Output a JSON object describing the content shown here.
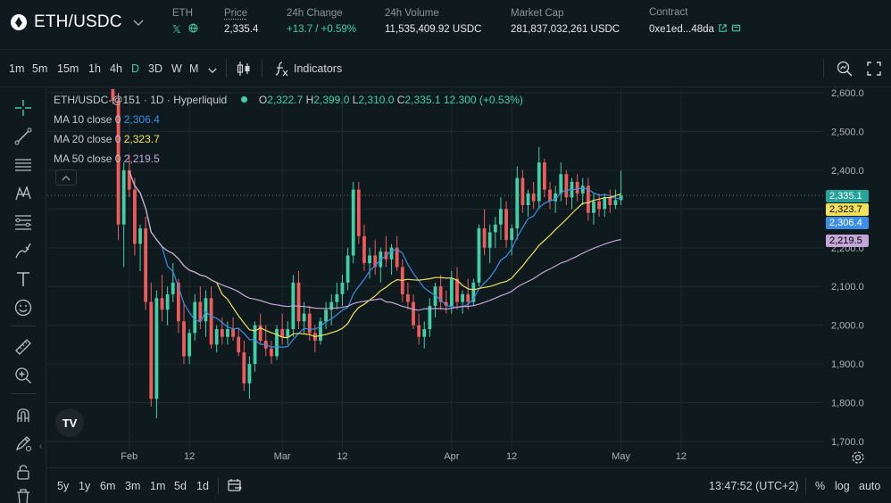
{
  "header": {
    "pair": "ETH/USDC",
    "icons": {
      "coin": "eth-coin-icon",
      "dropdown": "chevron-down-icon",
      "x": "x-social-icon",
      "web": "globe-icon",
      "external": "external-link-icon",
      "copy": "copy-icon"
    },
    "stats": [
      {
        "key": "eth",
        "label": "ETH"
      },
      {
        "key": "price",
        "label": "Price",
        "value": "2,335.4"
      },
      {
        "key": "change",
        "label": "24h Change",
        "value": "+13.7 / +0.59%"
      },
      {
        "key": "volume",
        "label": "24h Volume",
        "value": "11,535,409.92 USDC"
      },
      {
        "key": "mcap",
        "label": "Market Cap",
        "value": "281,837,032,261 USDC"
      },
      {
        "key": "contract",
        "label": "Contract",
        "value": "0xe1ed...48da"
      }
    ],
    "colors": {
      "up": "#3fd0a8",
      "down": "#ef5b5b"
    }
  },
  "toolbar": {
    "timeframes": [
      "1m",
      "5m",
      "15m",
      "1h",
      "4h",
      "D",
      "3D",
      "W",
      "M"
    ],
    "active_timeframe": "D",
    "more_icon": "chevron-down-icon",
    "candle_icon": "candlestick-icon",
    "indicators_icon": "function-icon",
    "indicators_label": "Indicators",
    "right_icons": [
      "search-chart-icon",
      "fullscreen-icon"
    ]
  },
  "drawing_tools": [
    "crosshair-icon",
    "trendline-icon",
    "horizontal-lines-icon",
    "pattern-icon",
    "fib-icon",
    "brush-icon",
    "text-icon",
    "emoji-icon",
    "ruler-icon",
    "zoom-in-icon",
    "magnet-icon",
    "lock-draw-icon",
    "lock-icon",
    "trash-icon"
  ],
  "legend": {
    "symbol_line": "ETH/USDC-@151 · 1D · Hyperliquid",
    "open_label": "O",
    "open": "2,322.7",
    "high_label": "H",
    "high": "2,399.0",
    "low_label": "L",
    "low": "2,310.0",
    "close_label": "C",
    "close": "2,335.1",
    "change": "12.300 (+0.53%)",
    "mas": [
      {
        "label": "MA 10 close 0",
        "value": "2,306.4",
        "color": "#3a8ee6"
      },
      {
        "label": "MA 20 close 0",
        "value": "2,323.7",
        "color": "#f2e05a"
      },
      {
        "label": "MA 50 close 0",
        "value": "2,219.5",
        "color": "#c3a6d8"
      }
    ]
  },
  "price_badges": [
    {
      "value": "2,335.1",
      "bg": "#26a69a",
      "fg": "#ffffff"
    },
    {
      "value": "2,323.7",
      "bg": "#f2e05a",
      "fg": "#000000"
    },
    {
      "value": "2,306.4",
      "bg": "#3a8ee6",
      "fg": "#ffffff"
    },
    {
      "value": "2,219.5",
      "bg": "#c3a6d8",
      "fg": "#000000"
    }
  ],
  "tv_logo": "TV",
  "collapse_icon": "chevron-up-icon",
  "bottom": {
    "ranges": [
      "5y",
      "1y",
      "6m",
      "3m",
      "1m",
      "5d",
      "1d"
    ],
    "goto_icon": "calendar-goto-icon",
    "time": "13:47:52 (UTC+2)",
    "percent": "%",
    "log": "log",
    "auto": "auto",
    "settings_icon": "gear-icon"
  },
  "chart_data": {
    "type": "candlestick",
    "y_ticks": [
      "2,600.0",
      "2,500.0",
      "2,400.0",
      "2,300.0",
      "2,200.0",
      "2,100.0",
      "2,000.0",
      "1,900.0",
      "1,800.0",
      "1,700.0"
    ],
    "ylim": [
      1700,
      2600
    ],
    "x_ticks": [
      "Feb",
      "12",
      "Mar",
      "12",
      "Apr",
      "12",
      "May",
      "12"
    ],
    "x_tick_days": [
      3,
      14,
      31,
      42,
      62,
      73,
      93,
      104
    ],
    "x_range_days": [
      -12,
      130
    ],
    "last_price": 2335.1,
    "candles": [
      [
        0,
        2650,
        2700,
        2570,
        2580
      ],
      [
        1,
        2580,
        2600,
        2220,
        2260
      ],
      [
        2,
        2260,
        2420,
        2150,
        2400
      ],
      [
        3,
        2400,
        2440,
        2330,
        2350
      ],
      [
        4,
        2350,
        2380,
        2180,
        2210
      ],
      [
        5,
        2210,
        2260,
        2140,
        2250
      ],
      [
        6,
        2250,
        2280,
        2040,
        2060
      ],
      [
        7,
        2060,
        2110,
        1790,
        1810
      ],
      [
        8,
        1810,
        2090,
        1760,
        2070
      ],
      [
        9,
        2070,
        2130,
        2010,
        2040
      ],
      [
        10,
        2040,
        2100,
        2000,
        2080
      ],
      [
        11,
        2080,
        2160,
        2060,
        2110
      ],
      [
        12,
        2110,
        2120,
        1980,
        2010
      ],
      [
        13,
        2010,
        2060,
        1900,
        1920
      ],
      [
        14,
        1920,
        1990,
        1900,
        1980
      ],
      [
        15,
        1980,
        2080,
        1960,
        2060
      ],
      [
        16,
        2060,
        2100,
        1990,
        2010
      ],
      [
        17,
        2010,
        2090,
        1970,
        2070
      ],
      [
        18,
        2070,
        2100,
        1940,
        1950
      ],
      [
        19,
        1950,
        2000,
        1930,
        1990
      ],
      [
        20,
        1990,
        2020,
        1950,
        1970
      ],
      [
        21,
        1970,
        2010,
        1950,
        1990
      ],
      [
        22,
        1990,
        2020,
        1960,
        1970
      ],
      [
        23,
        1970,
        1990,
        1920,
        1930
      ],
      [
        24,
        1930,
        1960,
        1830,
        1850
      ],
      [
        25,
        1850,
        1920,
        1810,
        1900
      ],
      [
        26,
        1900,
        2010,
        1880,
        2000
      ],
      [
        27,
        2000,
        2030,
        1950,
        1960
      ],
      [
        28,
        1960,
        2000,
        1920,
        1940
      ],
      [
        29,
        1940,
        1960,
        1900,
        1920
      ],
      [
        30,
        1920,
        2000,
        1910,
        1990
      ],
      [
        31,
        1990,
        2030,
        1950,
        1970
      ],
      [
        32,
        1970,
        2010,
        1950,
        1990
      ],
      [
        33,
        1990,
        2130,
        1970,
        2110
      ],
      [
        34,
        2110,
        2140,
        1990,
        2010
      ],
      [
        35,
        2010,
        2060,
        1980,
        2030
      ],
      [
        36,
        2030,
        2050,
        1960,
        1980
      ],
      [
        37,
        1980,
        2000,
        1930,
        1960
      ],
      [
        38,
        1960,
        2020,
        1950,
        2010
      ],
      [
        39,
        2010,
        2060,
        1990,
        2040
      ],
      [
        40,
        2040,
        2080,
        2000,
        2060
      ],
      [
        41,
        2060,
        2110,
        2040,
        2080
      ],
      [
        42,
        2080,
        2130,
        2050,
        2110
      ],
      [
        43,
        2110,
        2200,
        2090,
        2180
      ],
      [
        44,
        2180,
        2370,
        2160,
        2350
      ],
      [
        45,
        2350,
        2370,
        2210,
        2230
      ],
      [
        46,
        2230,
        2260,
        2140,
        2160
      ],
      [
        47,
        2160,
        2200,
        2120,
        2180
      ],
      [
        48,
        2180,
        2220,
        2130,
        2150
      ],
      [
        49,
        2150,
        2200,
        2110,
        2190
      ],
      [
        50,
        2190,
        2230,
        2150,
        2170
      ],
      [
        51,
        2170,
        2210,
        2130,
        2200
      ],
      [
        52,
        2200,
        2230,
        2140,
        2150
      ],
      [
        53,
        2150,
        2170,
        2060,
        2080
      ],
      [
        54,
        2080,
        2110,
        2040,
        2060
      ],
      [
        55,
        2060,
        2080,
        1990,
        2000
      ],
      [
        56,
        2000,
        2030,
        1950,
        1970
      ],
      [
        57,
        1970,
        2010,
        1940,
        1990
      ],
      [
        58,
        1990,
        2070,
        1970,
        2050
      ],
      [
        59,
        2050,
        2110,
        2020,
        2100
      ],
      [
        60,
        2100,
        2130,
        2040,
        2060
      ],
      [
        61,
        2060,
        2090,
        2030,
        2050
      ],
      [
        62,
        2050,
        2140,
        2030,
        2120
      ],
      [
        63,
        2120,
        2150,
        2040,
        2060
      ],
      [
        64,
        2060,
        2090,
        2030,
        2080
      ],
      [
        65,
        2080,
        2120,
        2040,
        2060
      ],
      [
        66,
        2060,
        2120,
        2050,
        2110
      ],
      [
        67,
        2110,
        2260,
        2100,
        2250
      ],
      [
        68,
        2250,
        2300,
        2180,
        2200
      ],
      [
        69,
        2200,
        2260,
        2160,
        2240
      ],
      [
        70,
        2240,
        2280,
        2200,
        2260
      ],
      [
        71,
        2260,
        2330,
        2220,
        2300
      ],
      [
        72,
        2300,
        2320,
        2200,
        2220
      ],
      [
        73,
        2220,
        2260,
        2180,
        2250
      ],
      [
        74,
        2250,
        2410,
        2220,
        2380
      ],
      [
        75,
        2380,
        2400,
        2290,
        2310
      ],
      [
        76,
        2310,
        2350,
        2280,
        2340
      ],
      [
        77,
        2340,
        2370,
        2300,
        2320
      ],
      [
        78,
        2320,
        2460,
        2300,
        2420
      ],
      [
        79,
        2420,
        2430,
        2330,
        2350
      ],
      [
        80,
        2350,
        2370,
        2300,
        2320
      ],
      [
        81,
        2320,
        2360,
        2290,
        2340
      ],
      [
        82,
        2340,
        2420,
        2320,
        2390
      ],
      [
        83,
        2390,
        2400,
        2310,
        2330
      ],
      [
        84,
        2330,
        2380,
        2300,
        2370
      ],
      [
        85,
        2370,
        2390,
        2320,
        2340
      ],
      [
        86,
        2340,
        2380,
        2310,
        2360
      ],
      [
        87,
        2360,
        2380,
        2270,
        2290
      ],
      [
        88,
        2290,
        2340,
        2260,
        2320
      ],
      [
        89,
        2320,
        2340,
        2280,
        2300
      ],
      [
        90,
        2300,
        2340,
        2280,
        2330
      ],
      [
        91,
        2330,
        2350,
        2290,
        2310
      ],
      [
        92,
        2310,
        2350,
        2300,
        2323
      ],
      [
        93,
        2323,
        2399,
        2310,
        2335
      ]
    ]
  }
}
